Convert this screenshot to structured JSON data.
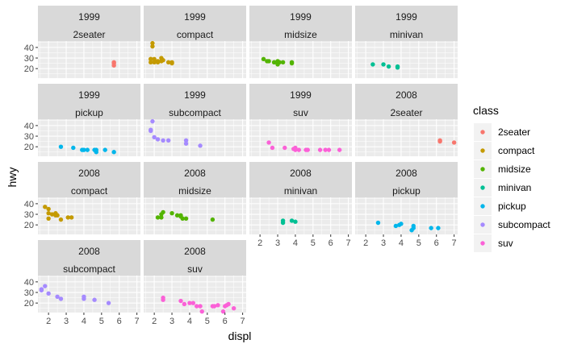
{
  "chart_data": {
    "type": "scatter",
    "facet_layout": "4 columns x 4 rows, facet_wrap by year then class",
    "xlabel": "displ",
    "ylabel": "hwy",
    "xlim": [
      1.4,
      7.2
    ],
    "ylim": [
      11,
      46
    ],
    "x_ticks": [
      2,
      3,
      4,
      5,
      6,
      7
    ],
    "y_ticks": [
      20,
      30,
      40
    ],
    "legend": {
      "title": "class",
      "position": "right",
      "entries": [
        "2seater",
        "compact",
        "midsize",
        "minivan",
        "pickup",
        "subcompact",
        "suv"
      ]
    },
    "colors": {
      "2seater": "#F8766D",
      "compact": "#C49A00",
      "midsize": "#53B400",
      "minivan": "#00C094",
      "pickup": "#00B6EB",
      "subcompact": "#A58AFF",
      "suv": "#FB61D7",
      "panel_bg": "#EBEBEB",
      "strip_bg": "#D9D9D9",
      "grid": "#FFFFFF"
    },
    "panels": [
      {
        "year": "1999",
        "class": "2seater",
        "points": [
          [
            5.7,
            26
          ],
          [
            5.7,
            23
          ],
          [
            5.7,
            25
          ]
        ]
      },
      {
        "year": "1999",
        "class": "compact",
        "points": [
          [
            1.8,
            29
          ],
          [
            1.8,
            29
          ],
          [
            2.8,
            26
          ],
          [
            1.9,
            44
          ],
          [
            1.9,
            41
          ],
          [
            1.8,
            26
          ],
          [
            2.0,
            29
          ],
          [
            2.0,
            26
          ],
          [
            2.4,
            27
          ],
          [
            2.4,
            30
          ],
          [
            2.2,
            26
          ],
          [
            2.2,
            27
          ],
          [
            3.0,
            26
          ],
          [
            3.0,
            25
          ],
          [
            2.5,
            28
          ]
        ]
      },
      {
        "year": "1999",
        "class": "midsize",
        "points": [
          [
            2.8,
            26
          ],
          [
            2.8,
            26
          ],
          [
            2.4,
            27
          ],
          [
            3.1,
            26
          ],
          [
            3.8,
            26
          ],
          [
            3.8,
            25
          ],
          [
            2.2,
            29
          ],
          [
            3.0,
            24
          ],
          [
            3.3,
            26
          ],
          [
            3.0,
            27
          ],
          [
            2.5,
            27
          ]
        ]
      },
      {
        "year": "1999",
        "class": "minivan",
        "points": [
          [
            2.4,
            24
          ],
          [
            3.0,
            24
          ],
          [
            3.3,
            22
          ],
          [
            3.8,
            22
          ],
          [
            3.8,
            21
          ]
        ]
      },
      {
        "year": "1999",
        "class": "pickup",
        "points": [
          [
            2.7,
            20
          ],
          [
            3.9,
            17
          ],
          [
            4.7,
            17
          ],
          [
            4.7,
            15
          ],
          [
            5.2,
            17
          ],
          [
            3.4,
            19
          ],
          [
            4.0,
            17
          ],
          [
            4.2,
            17
          ],
          [
            4.6,
            17
          ],
          [
            5.7,
            15
          ]
        ]
      },
      {
        "year": "1999",
        "class": "subcompact",
        "points": [
          [
            1.8,
            36
          ],
          [
            1.8,
            35
          ],
          [
            1.9,
            44
          ],
          [
            2.0,
            29
          ],
          [
            2.2,
            27
          ],
          [
            2.5,
            26
          ],
          [
            3.8,
            26
          ],
          [
            3.8,
            23
          ],
          [
            4.6,
            21
          ],
          [
            2.8,
            26
          ]
        ]
      },
      {
        "year": "1999",
        "class": "suv",
        "points": [
          [
            2.5,
            24
          ],
          [
            2.7,
            19
          ],
          [
            4.0,
            19
          ],
          [
            4.0,
            17
          ],
          [
            4.6,
            17
          ],
          [
            5.4,
            17
          ],
          [
            5.7,
            17
          ],
          [
            3.9,
            18
          ],
          [
            5.9,
            17
          ],
          [
            6.5,
            17
          ],
          [
            4.7,
            17
          ],
          [
            4.2,
            17
          ],
          [
            3.4,
            19
          ]
        ]
      },
      {
        "year": "2008",
        "class": "2seater",
        "points": [
          [
            6.2,
            26
          ],
          [
            6.2,
            25
          ],
          [
            7.0,
            24
          ]
        ]
      },
      {
        "year": "2008",
        "class": "compact",
        "points": [
          [
            1.8,
            37
          ],
          [
            2.0,
            35
          ],
          [
            2.0,
            31
          ],
          [
            2.2,
            30
          ],
          [
            2.4,
            31
          ],
          [
            2.4,
            29
          ],
          [
            2.5,
            29
          ],
          [
            2.0,
            26
          ],
          [
            3.1,
            27
          ],
          [
            3.3,
            27
          ],
          [
            2.7,
            25
          ]
        ]
      },
      {
        "year": "2008",
        "class": "midsize",
        "points": [
          [
            2.4,
            30
          ],
          [
            3.0,
            31
          ],
          [
            2.5,
            32
          ],
          [
            3.5,
            29
          ],
          [
            3.6,
            26
          ],
          [
            3.8,
            26
          ],
          [
            2.4,
            27
          ],
          [
            2.2,
            27
          ],
          [
            3.3,
            29
          ],
          [
            5.3,
            25
          ],
          [
            3.5,
            28
          ]
        ]
      },
      {
        "year": "2008",
        "class": "minivan",
        "points": [
          [
            3.3,
            24
          ],
          [
            3.3,
            22
          ],
          [
            3.8,
            24
          ],
          [
            4.0,
            23
          ]
        ]
      },
      {
        "year": "2008",
        "class": "pickup",
        "points": [
          [
            2.7,
            22
          ],
          [
            3.7,
            19
          ],
          [
            4.0,
            21
          ],
          [
            3.9,
            20
          ],
          [
            4.7,
            19
          ],
          [
            4.7,
            17
          ],
          [
            5.7,
            17
          ],
          [
            6.1,
            17
          ],
          [
            4.6,
            15
          ]
        ]
      },
      {
        "year": "2008",
        "class": "subcompact",
        "points": [
          [
            1.6,
            33
          ],
          [
            1.8,
            36
          ],
          [
            1.6,
            32
          ],
          [
            2.0,
            29
          ],
          [
            2.5,
            26
          ],
          [
            2.7,
            24
          ],
          [
            4.0,
            26
          ],
          [
            4.0,
            24
          ],
          [
            4.6,
            23
          ],
          [
            5.4,
            20
          ]
        ]
      },
      {
        "year": "2008",
        "class": "suv",
        "points": [
          [
            2.5,
            25
          ],
          [
            2.5,
            23
          ],
          [
            3.5,
            22
          ],
          [
            3.7,
            19
          ],
          [
            4.0,
            20
          ],
          [
            4.4,
            17
          ],
          [
            4.6,
            17
          ],
          [
            5.3,
            17
          ],
          [
            5.4,
            17
          ],
          [
            4.7,
            12
          ],
          [
            5.6,
            18
          ],
          [
            6.1,
            18
          ],
          [
            6.5,
            15
          ],
          [
            6.0,
            17
          ],
          [
            6.2,
            19
          ],
          [
            5.9,
            12
          ],
          [
            4.2,
            20
          ]
        ]
      }
    ]
  }
}
